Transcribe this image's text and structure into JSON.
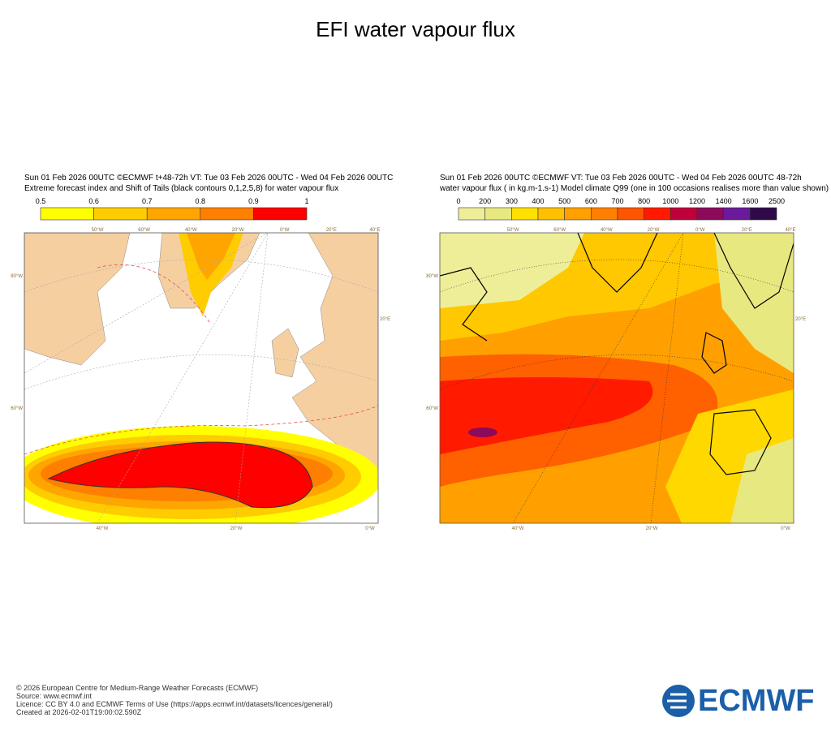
{
  "title": "EFI water vapour flux",
  "panels": [
    {
      "header": [
        "Sun 01 Feb 2026 00UTC ©ECMWF t+48-72h  VT: Tue 03 Feb 2026 00UTC - Wed 04 Feb 2026 00UTC",
        "Extreme forecast index and Shift of Tails (black contours 0,1,2,5,8) for water vapour flux"
      ],
      "colorbar": [
        "0.5",
        "0.6",
        "0.7",
        "0.8",
        "0.9",
        "1"
      ],
      "lon_top": [
        "50°W",
        "60°W",
        "40°W",
        "20°W",
        "0°W",
        "20°E",
        "40°E"
      ],
      "lon_bottom": [
        "40°W",
        "20°W",
        "0°W"
      ],
      "lat_left": [
        "80°W",
        "60°W"
      ],
      "lat_right": [
        "20°E"
      ]
    },
    {
      "header": [
        "Sun 01 Feb 2026 00UTC ©ECMWF VT: Tue 03 Feb 2026 00UTC - Wed 04 Feb 2026 00UTC   48-72h",
        "water vapour flux ( in kg.m-1.s-1)  Model climate Q99 (one in 100 occasions realises more than value shown)"
      ],
      "colorbar": [
        "0",
        "200",
        "300",
        "400",
        "500",
        "600",
        "700",
        "800",
        "1000",
        "1200",
        "1400",
        "1600",
        "2500"
      ],
      "lon_top": [
        "50°W",
        "60°W",
        "40°W",
        "20°W",
        "0°W",
        "20°E",
        "40°E"
      ],
      "lon_bottom": [
        "40°W",
        "20°W",
        "0°W"
      ],
      "lat_left": [
        "80°W",
        "60°W"
      ],
      "lat_right": [
        "20°E"
      ]
    }
  ],
  "footer": [
    "© 2026 European Centre for Medium-Range Weather Forecasts (ECMWF)",
    "Source: www.ecmwf.int",
    "Licence: CC BY 4.0 and ECMWF Terms of Use (https://apps.ecmwf.int/datasets/licences/general/)",
    "Created at 2026-02-01T19:00:02.590Z"
  ],
  "logo": "ECMWF"
}
